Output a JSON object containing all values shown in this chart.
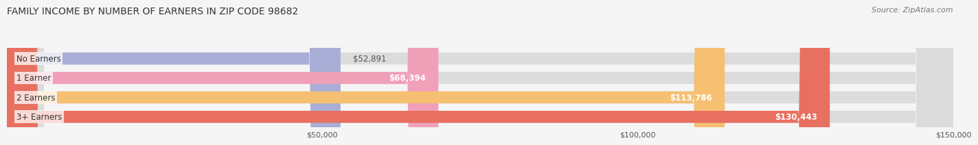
{
  "title": "FAMILY INCOME BY NUMBER OF EARNERS IN ZIP CODE 98682",
  "source": "Source: ZipAtlas.com",
  "categories": [
    "No Earners",
    "1 Earner",
    "2 Earners",
    "3+ Earners"
  ],
  "values": [
    52891,
    68394,
    113786,
    130443
  ],
  "bar_colors": [
    "#a8aed6",
    "#f0a0b8",
    "#f5c072",
    "#e87060"
  ],
  "value_labels": [
    "$52,891",
    "$68,394",
    "$113,786",
    "$130,443"
  ],
  "xlim": [
    0,
    150000
  ],
  "xticks": [
    50000,
    100000,
    150000
  ],
  "xtick_labels": [
    "$50,000",
    "$100,000",
    "$150,000"
  ],
  "title_fontsize": 10,
  "source_fontsize": 8,
  "label_fontsize": 8.5,
  "value_fontsize": 8.5,
  "background_color": "#f5f5f5"
}
